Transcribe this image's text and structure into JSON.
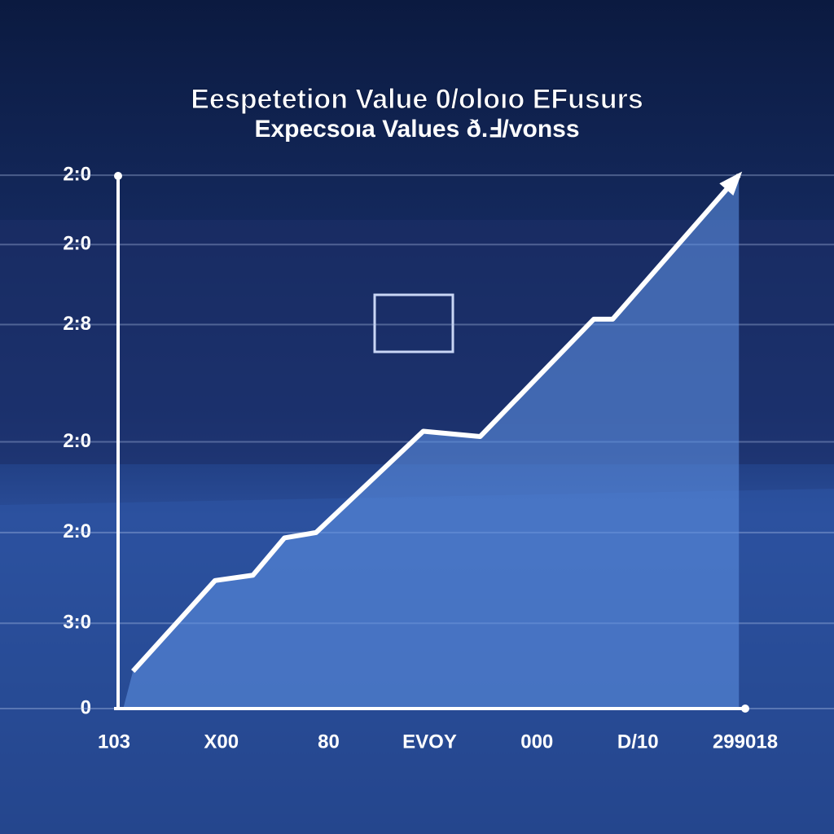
{
  "chart_data": {
    "type": "line",
    "title": "Eespetetion Value 0/oloıo EFusurs",
    "subtitle": "Expecsoıa Values ð.Ⅎ/vonss",
    "x": [
      3,
      16,
      22,
      27,
      32,
      49,
      58,
      67,
      76,
      79,
      99
    ],
    "series": [
      {
        "color": "#ffffff",
        "values": [
          7,
          24,
          25,
          32,
          33,
          52,
          51,
          62,
          73,
          73,
          100
        ]
      }
    ],
    "xlim": [
      0,
      100
    ],
    "xticks": [
      {
        "value": 0,
        "label": "103"
      },
      {
        "value": 17,
        "label": "X00"
      },
      {
        "value": 34,
        "label": "80"
      },
      {
        "value": 50,
        "label": "EVOY"
      },
      {
        "value": 67,
        "label": "000"
      },
      {
        "value": 83,
        "label": "D/10"
      },
      {
        "value": 100,
        "label": "299018"
      }
    ],
    "ylim": [
      0,
      102
    ],
    "yticks": [
      0,
      {
        "value": 16,
        "label": "3:0"
      },
      {
        "value": 33,
        "label": "2:0"
      },
      {
        "value": 50,
        "label": "2:0"
      },
      {
        "value": 72,
        "label": "2:8"
      },
      {
        "value": 87,
        "label": "2:0"
      },
      {
        "value": 100,
        "label": "2:0"
      }
    ],
    "grid": true,
    "area_color": "#5b8ee0"
  }
}
